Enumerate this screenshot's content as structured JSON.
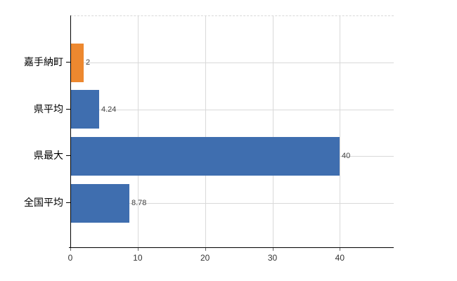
{
  "chart_data": {
    "type": "bar",
    "orientation": "horizontal",
    "title": "",
    "xlabel": "",
    "ylabel": "",
    "categories": [
      "嘉手納町",
      "県平均",
      "県最大",
      "全国平均"
    ],
    "values": [
      2,
      4.24,
      40,
      8.78
    ],
    "value_labels": [
      "2",
      "4.24",
      "40",
      "8.78"
    ],
    "bar_colors": [
      "#ED882F",
      "#3F6EAF",
      "#3F6EAF",
      "#3F6EAF"
    ],
    "x_ticks": [
      0,
      10,
      20,
      30,
      40
    ],
    "x_tick_labels": [
      "0",
      "10",
      "20",
      "30",
      "40"
    ],
    "xlim": [
      0,
      48
    ],
    "grid": true,
    "legend": "none",
    "colors": {
      "highlight_bar": "#ED882F",
      "default_bar": "#3F6EAF",
      "gridline": "#d9d9d9",
      "axis": "#000000",
      "value_label": "#404040",
      "tick_label": "#333333",
      "background": "#ffffff"
    }
  }
}
